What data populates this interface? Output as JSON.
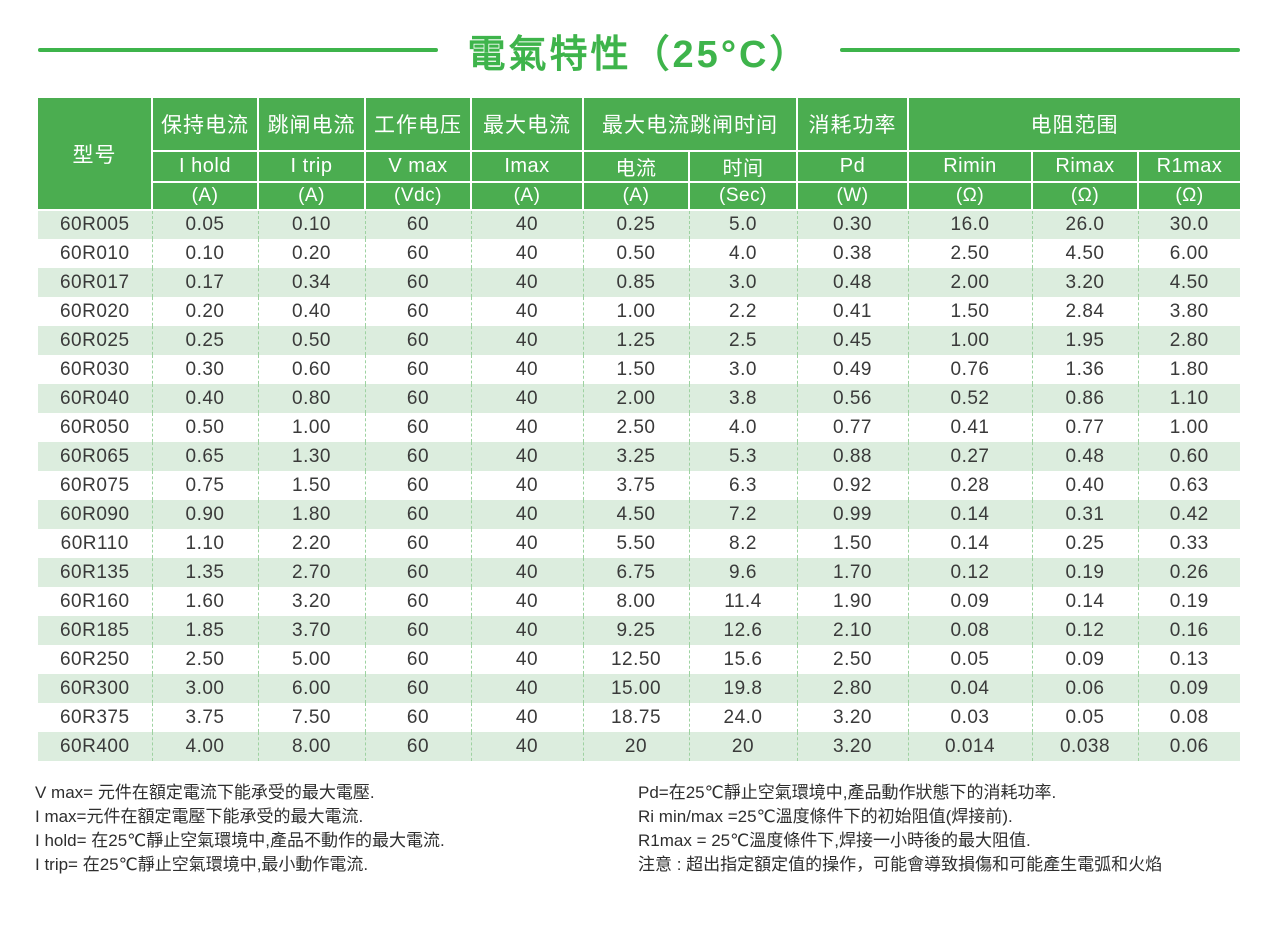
{
  "page_title": "電氣特性（25°C）",
  "colors": {
    "accent_green": "#3eb44b",
    "header_green": "#4bad50",
    "stripe_green": "#dcedde",
    "dash_green": "#9ed2a1",
    "body_text": "#3a3a3a"
  },
  "table": {
    "model_header": "型号",
    "columns": [
      {
        "cn": "保持电流",
        "sym": "I hold",
        "unit": "(A)"
      },
      {
        "cn": "跳闸电流",
        "sym": "I trip",
        "unit": "(A)"
      },
      {
        "cn": "工作电压",
        "sym": "V max",
        "unit": "(Vdc)"
      },
      {
        "cn": "最大电流",
        "sym": "Imax",
        "unit": "(A)"
      }
    ],
    "trip_group": {
      "label": "最大电流跳闸时间",
      "cols": [
        {
          "cn": "电流",
          "unit": "(A)"
        },
        {
          "cn": "时间",
          "unit": "(Sec)"
        }
      ]
    },
    "power": {
      "cn": "消耗功率",
      "sym": "Pd",
      "unit": "(W)"
    },
    "res_group": {
      "label": "电阻范围",
      "cols": [
        {
          "sym": "Rimin",
          "unit": "(Ω)"
        },
        {
          "sym": "Rimax",
          "unit": "(Ω)"
        },
        {
          "sym": "R1max",
          "unit": "(Ω)"
        }
      ]
    },
    "rows": [
      [
        "60R005",
        "0.05",
        "0.10",
        "60",
        "40",
        "0.25",
        "5.0",
        "0.30",
        "16.0",
        "26.0",
        "30.0"
      ],
      [
        "60R010",
        "0.10",
        "0.20",
        "60",
        "40",
        "0.50",
        "4.0",
        "0.38",
        "2.50",
        "4.50",
        "6.00"
      ],
      [
        "60R017",
        "0.17",
        "0.34",
        "60",
        "40",
        "0.85",
        "3.0",
        "0.48",
        "2.00",
        "3.20",
        "4.50"
      ],
      [
        "60R020",
        "0.20",
        "0.40",
        "60",
        "40",
        "1.00",
        "2.2",
        "0.41",
        "1.50",
        "2.84",
        "3.80"
      ],
      [
        "60R025",
        "0.25",
        "0.50",
        "60",
        "40",
        "1.25",
        "2.5",
        "0.45",
        "1.00",
        "1.95",
        "2.80"
      ],
      [
        "60R030",
        "0.30",
        "0.60",
        "60",
        "40",
        "1.50",
        "3.0",
        "0.49",
        "0.76",
        "1.36",
        "1.80"
      ],
      [
        "60R040",
        "0.40",
        "0.80",
        "60",
        "40",
        "2.00",
        "3.8",
        "0.56",
        "0.52",
        "0.86",
        "1.10"
      ],
      [
        "60R050",
        "0.50",
        "1.00",
        "60",
        "40",
        "2.50",
        "4.0",
        "0.77",
        "0.41",
        "0.77",
        "1.00"
      ],
      [
        "60R065",
        "0.65",
        "1.30",
        "60",
        "40",
        "3.25",
        "5.3",
        "0.88",
        "0.27",
        "0.48",
        "0.60"
      ],
      [
        "60R075",
        "0.75",
        "1.50",
        "60",
        "40",
        "3.75",
        "6.3",
        "0.92",
        "0.28",
        "0.40",
        "0.63"
      ],
      [
        "60R090",
        "0.90",
        "1.80",
        "60",
        "40",
        "4.50",
        "7.2",
        "0.99",
        "0.14",
        "0.31",
        "0.42"
      ],
      [
        "60R110",
        "1.10",
        "2.20",
        "60",
        "40",
        "5.50",
        "8.2",
        "1.50",
        "0.14",
        "0.25",
        "0.33"
      ],
      [
        "60R135",
        "1.35",
        "2.70",
        "60",
        "40",
        "6.75",
        "9.6",
        "1.70",
        "0.12",
        "0.19",
        "0.26"
      ],
      [
        "60R160",
        "1.60",
        "3.20",
        "60",
        "40",
        "8.00",
        "11.4",
        "1.90",
        "0.09",
        "0.14",
        "0.19"
      ],
      [
        "60R185",
        "1.85",
        "3.70",
        "60",
        "40",
        "9.25",
        "12.6",
        "2.10",
        "0.08",
        "0.12",
        "0.16"
      ],
      [
        "60R250",
        "2.50",
        "5.00",
        "60",
        "40",
        "12.50",
        "15.6",
        "2.50",
        "0.05",
        "0.09",
        "0.13"
      ],
      [
        "60R300",
        "3.00",
        "6.00",
        "60",
        "40",
        "15.00",
        "19.8",
        "2.80",
        "0.04",
        "0.06",
        "0.09"
      ],
      [
        "60R375",
        "3.75",
        "7.50",
        "60",
        "40",
        "18.75",
        "24.0",
        "3.20",
        "0.03",
        "0.05",
        "0.08"
      ],
      [
        "60R400",
        "4.00",
        "8.00",
        "60",
        "40",
        "20",
        "20",
        "3.20",
        "0.014",
        "0.038",
        "0.06"
      ]
    ]
  },
  "notes": {
    "left": [
      "V max= 元件在額定電流下能承受的最大電壓.",
      "I max=元件在額定電壓下能承受的最大電流.",
      "I hold= 在25℃靜止空氣環境中,產品不動作的最大電流.",
      "I trip= 在25℃靜止空氣環境中,最小動作電流."
    ],
    "right": [
      "Pd=在25℃靜止空氣環境中,產品動作狀態下的消耗功率.",
      "Ri min/max  =25℃溫度條件下的初始阻值(焊接前).",
      "R1max  = 25℃溫度條件下,焊接一小時後的最大阻值.",
      "注意 : 超出指定額定值的操作，可能會導致損傷和可能產生電弧和火焰"
    ]
  }
}
